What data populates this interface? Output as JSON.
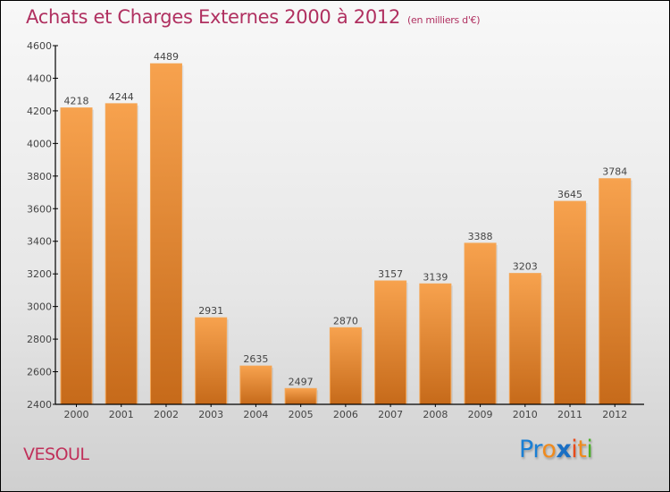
{
  "header": {
    "title": "Achats et Charges Externes 2000 à 2012",
    "unit": "(en milliers d'€)"
  },
  "footer": {
    "place": "VESOUL",
    "logo": [
      {
        "text": "P",
        "color": "#1a7fd4"
      },
      {
        "text": "r",
        "color": "#1a7fd4"
      },
      {
        "text": "o",
        "color": "#f08a1c"
      },
      {
        "text": "x",
        "color": "#1a6fc4"
      },
      {
        "text": "i",
        "color": "#e84a1a"
      },
      {
        "text": "t",
        "color": "#f08a1c"
      },
      {
        "text": "i",
        "color": "#4caf2a"
      }
    ]
  },
  "colors": {
    "title": "#b03060",
    "bar_top": "#f7a24e",
    "bar_bottom": "#c66a1a"
  },
  "chart_data": {
    "type": "bar",
    "title": "Achats et Charges Externes 2000 à 2012",
    "subtitle": "(en milliers d'€)",
    "xlabel": "",
    "ylabel": "",
    "categories": [
      "2000",
      "2001",
      "2002",
      "2003",
      "2004",
      "2005",
      "2006",
      "2007",
      "2008",
      "2009",
      "2010",
      "2011",
      "2012"
    ],
    "values": [
      4218,
      4244,
      4489,
      2931,
      2635,
      2497,
      2870,
      3157,
      3139,
      3388,
      3203,
      3645,
      3784
    ],
    "ylim": [
      2400,
      4600
    ],
    "yticks": [
      2400,
      2600,
      2800,
      3000,
      3200,
      3400,
      3600,
      3800,
      4000,
      4200,
      4400,
      4600
    ],
    "grid": false,
    "legend": "none",
    "data_labels": true
  }
}
